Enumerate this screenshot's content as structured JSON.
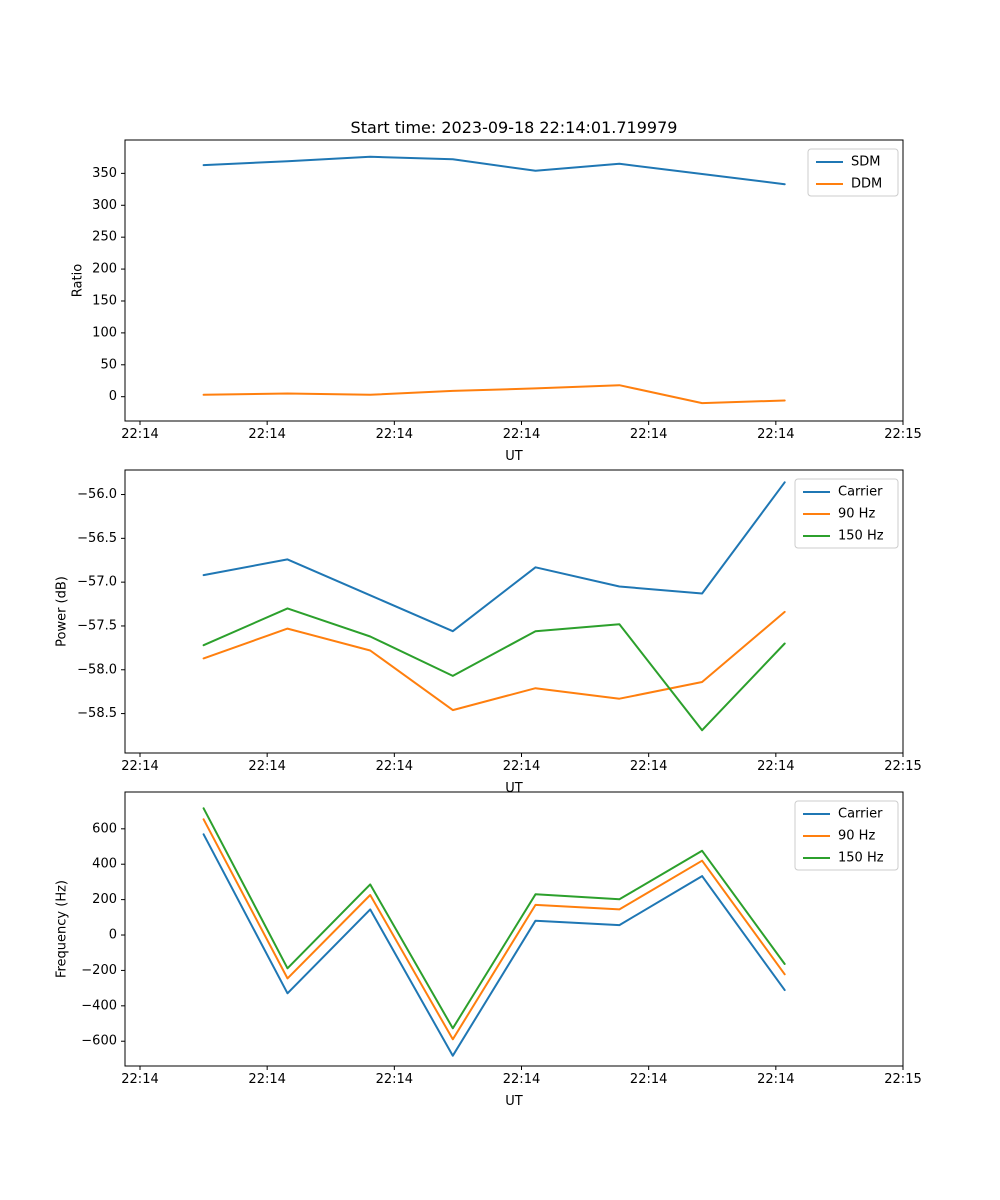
{
  "figure_title": "Start time: 2023-09-18 22:14:01.719979",
  "x_axis": {
    "label": "UT",
    "range_seconds": [
      0,
      60
    ],
    "tick_seconds": [
      0,
      10,
      20,
      30,
      40,
      50,
      60
    ],
    "tick_labels": [
      "22:14",
      "22:14",
      "22:14",
      "22:14",
      "22:14",
      "22:14",
      "22:15"
    ]
  },
  "sample_times_seconds": [
    5.0,
    11.6,
    18.1,
    24.6,
    31.1,
    37.7,
    44.2,
    50.7
  ],
  "palette": {
    "blue": "#1f77b4",
    "orange": "#ff7f0e",
    "green": "#2ca02c"
  },
  "chart_data": [
    {
      "type": "line",
      "title": "Start time: 2023-09-18 22:14:01.719979",
      "xlabel": "UT",
      "ylabel": "Ratio",
      "xtick_labels": [
        "22:14",
        "22:14",
        "22:14",
        "22:14",
        "22:14",
        "22:14",
        "22:15"
      ],
      "ylim": [
        -38.1,
        402.3
      ],
      "ytick_values": [
        0,
        50,
        100,
        150,
        200,
        250,
        300,
        350
      ],
      "ytick_labels": [
        "0",
        "50",
        "100",
        "150",
        "200",
        "250",
        "300",
        "350"
      ],
      "grid": false,
      "legend_position": "upper right",
      "series": [
        {
          "name": "SDM",
          "color": "#1f77b4",
          "values": [
            363,
            369,
            376,
            372,
            354,
            365,
            349,
            333
          ]
        },
        {
          "name": "DDM",
          "color": "#ff7f0e",
          "values": [
            3,
            5,
            3,
            9,
            13,
            18,
            -10,
            -6
          ]
        }
      ]
    },
    {
      "type": "line",
      "title": "",
      "xlabel": "UT",
      "ylabel": "Power (dB)",
      "xtick_labels": [
        "22:14",
        "22:14",
        "22:14",
        "22:14",
        "22:14",
        "22:14",
        "22:15"
      ],
      "ylim": [
        -58.95,
        -55.72
      ],
      "ytick_values": [
        -56.0,
        -56.5,
        -57.0,
        -57.5,
        -58.0,
        -58.5
      ],
      "ytick_labels": [
        "−56.0",
        "−56.5",
        "−57.0",
        "−57.5",
        "−58.0",
        "−58.5"
      ],
      "grid": false,
      "legend_position": "upper right",
      "series": [
        {
          "name": "Carrier",
          "color": "#1f77b4",
          "values": [
            -56.92,
            -56.74,
            -57.15,
            -57.56,
            -56.83,
            -57.05,
            -57.13,
            -55.86
          ]
        },
        {
          "name": "90 Hz",
          "color": "#ff7f0e",
          "values": [
            -57.87,
            -57.53,
            -57.78,
            -58.46,
            -58.21,
            -58.33,
            -58.14,
            -57.34
          ]
        },
        {
          "name": "150 Hz",
          "color": "#2ca02c",
          "values": [
            -57.72,
            -57.3,
            -57.62,
            -58.07,
            -57.56,
            -57.48,
            -58.69,
            -57.7
          ]
        }
      ]
    },
    {
      "type": "line",
      "title": "",
      "xlabel": "UT",
      "ylabel": "Frequency (Hz)",
      "xtick_labels": [
        "22:14",
        "22:14",
        "22:14",
        "22:14",
        "22:14",
        "22:14",
        "22:15"
      ],
      "ylim": [
        -740,
        808
      ],
      "ytick_values": [
        600,
        400,
        200,
        0,
        -200,
        -400,
        -600
      ],
      "ytick_labels": [
        "600",
        "400",
        "200",
        "0",
        "−200",
        "−400",
        "−600"
      ],
      "grid": false,
      "legend_position": "upper right",
      "series": [
        {
          "name": "Carrier",
          "color": "#1f77b4",
          "values": [
            569,
            -329,
            145,
            -682,
            81,
            56,
            333,
            -311
          ]
        },
        {
          "name": "90 Hz",
          "color": "#ff7f0e",
          "values": [
            654,
            -245,
            226,
            -589,
            170,
            145,
            420,
            -222
          ]
        },
        {
          "name": "150 Hz",
          "color": "#2ca02c",
          "values": [
            716,
            -188,
            286,
            -527,
            230,
            202,
            476,
            -164
          ]
        }
      ]
    }
  ]
}
